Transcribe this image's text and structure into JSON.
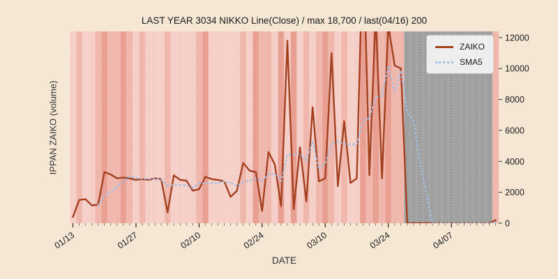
{
  "figure": {
    "background": "#f6e7d4"
  },
  "chart_data": {
    "type": "line",
    "title": "LAST YEAR 3034 NIKKO Line(Close) / max 18,700 / last(04/16) 200",
    "xlabel": "DATE",
    "ylabel": "IPPAN ZAIKO (volume)",
    "ylim": [
      0,
      12400
    ],
    "yticks": [
      0,
      2000,
      4000,
      6000,
      8000,
      10000,
      12000
    ],
    "yaxis_position": "right",
    "grid": "off",
    "xtick_labels": [
      "01/13",
      "01/27",
      "02/10",
      "02/24",
      "03/10",
      "03/24",
      "04/07"
    ],
    "xtick_indices": [
      0,
      10,
      20,
      30,
      40,
      50,
      60
    ],
    "x": [
      "01/13",
      "01/14",
      "01/15",
      "01/16",
      "01/17",
      "01/20",
      "01/21",
      "01/22",
      "01/23",
      "01/24",
      "01/27",
      "01/28",
      "01/29",
      "01/30",
      "01/31",
      "02/03",
      "02/04",
      "02/05",
      "02/06",
      "02/07",
      "02/10",
      "02/11",
      "02/12",
      "02/13",
      "02/14",
      "02/17",
      "02/18",
      "02/19",
      "02/20",
      "02/21",
      "02/24",
      "02/25",
      "02/26",
      "02/27",
      "02/28",
      "03/03",
      "03/04",
      "03/05",
      "03/06",
      "03/07",
      "03/10",
      "03/11",
      "03/12",
      "03/13",
      "03/14",
      "03/17",
      "03/18",
      "03/19",
      "03/20",
      "03/21",
      "03/24",
      "03/25",
      "03/26",
      "03/27",
      "03/28",
      "03/31",
      "04/01",
      "04/02",
      "04/03",
      "04/04",
      "04/07",
      "04/08",
      "04/09",
      "04/10",
      "04/11",
      "04/14",
      "04/15",
      "04/16"
    ],
    "series": [
      {
        "name": "ZAIKO",
        "color": "#a24020",
        "style": "solid",
        "values": [
          400,
          1500,
          1550,
          1150,
          1200,
          3300,
          3150,
          2900,
          2950,
          2900,
          2800,
          2850,
          2800,
          2900,
          2850,
          700,
          3100,
          2800,
          2750,
          2100,
          2200,
          3000,
          2850,
          2800,
          2700,
          1700,
          2100,
          3900,
          3400,
          3300,
          800,
          4600,
          3800,
          1100,
          11800,
          900,
          4900,
          1400,
          7500,
          2700,
          2900,
          11000,
          2400,
          6600,
          2600,
          2900,
          18700,
          3100,
          13500,
          2900,
          12800,
          10200,
          10000,
          0,
          0,
          0,
          0,
          0,
          0,
          0,
          0,
          0,
          0,
          0,
          0,
          0,
          0,
          200
        ]
      },
      {
        "name": "SMA5",
        "color": "#a3bfe8",
        "style": "dotted",
        "values": [
          null,
          null,
          null,
          null,
          1160,
          1740,
          2070,
          2340,
          2700,
          3040,
          2940,
          2880,
          2860,
          2850,
          2840,
          2420,
          2470,
          2470,
          2440,
          2290,
          2590,
          2570,
          2580,
          2590,
          2710,
          2610,
          2430,
          2640,
          2760,
          2880,
          2700,
          3200,
          3180,
          2720,
          4420,
          4440,
          4500,
          4020,
          5300,
          3480,
          3880,
          5100,
          5300,
          5120,
          5100,
          5100,
          6640,
          6780,
          8160,
          8220,
          10200,
          8500,
          9880,
          7180,
          6600,
          4040,
          2000,
          0,
          0,
          0,
          0,
          0,
          0,
          0,
          0,
          0,
          0,
          40
        ]
      }
    ],
    "annotations": {
      "max_value": "18,700",
      "last_date": "04/16",
      "last_value": "200"
    },
    "nodata_region": {
      "start_index": 53,
      "end_index": 66,
      "color": "#a0a0a0"
    },
    "band_palette": [
      "#f8ddd8",
      "#f5cfc8",
      "#f0b8ad",
      "#ea9f93"
    ],
    "day_band_intensity": [
      1,
      2,
      1,
      1,
      2,
      3,
      2,
      2,
      3,
      2,
      1,
      2,
      1,
      1,
      1,
      2,
      1,
      1,
      1,
      1,
      2,
      3,
      1,
      1,
      1,
      1,
      1,
      2,
      1,
      3,
      2,
      2,
      1,
      3,
      1,
      3,
      1,
      2,
      1,
      2,
      3,
      2,
      1,
      2,
      1,
      1,
      3,
      2,
      3,
      2,
      3,
      2,
      2,
      0,
      0,
      0,
      0,
      0,
      0,
      0,
      0,
      0,
      0,
      0,
      0,
      0,
      0,
      2
    ],
    "legend": {
      "position": "upper right",
      "entries": [
        {
          "label": "ZAIKO",
          "color": "#a24020",
          "style": "solid"
        },
        {
          "label": "SMA5",
          "color": "#a3bfe8",
          "style": "dotted"
        }
      ]
    }
  }
}
